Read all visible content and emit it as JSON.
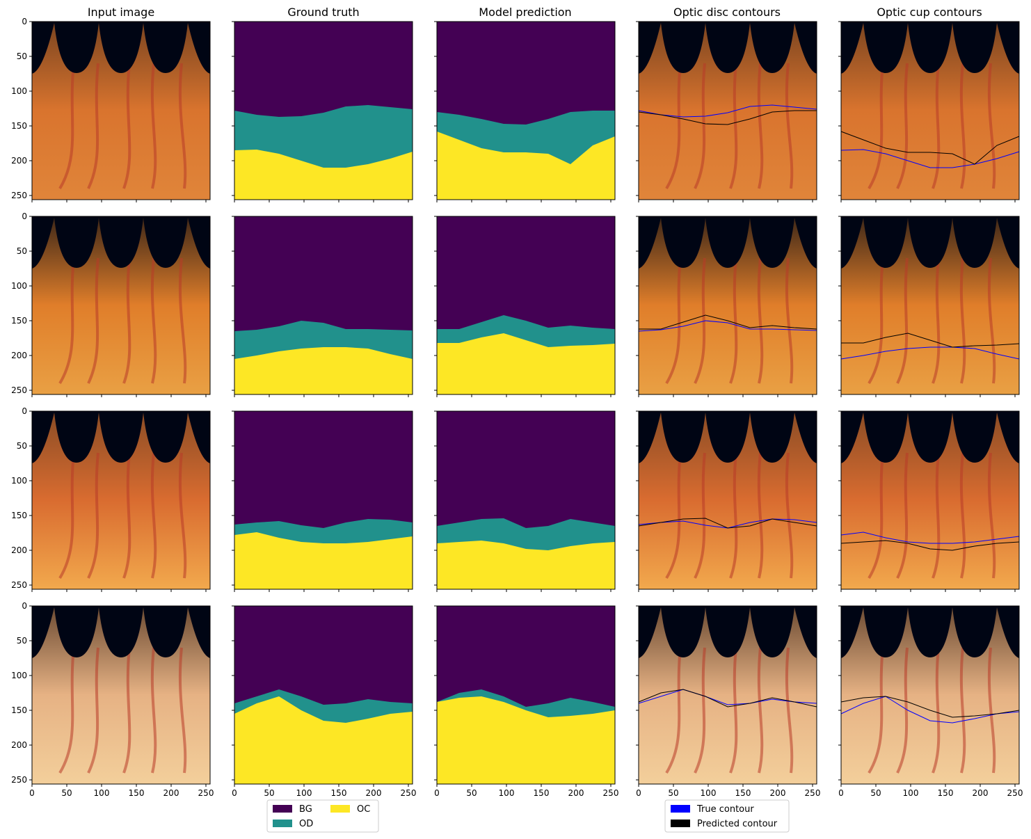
{
  "figure": {
    "column_titles": [
      "Input image",
      "Ground truth",
      "Model prediction",
      "Optic disc contours",
      "Optic cup contours"
    ],
    "y_ticks": [
      "0",
      "50",
      "100",
      "150",
      "200",
      "250"
    ],
    "x_ticks": [
      "0",
      "50",
      "100",
      "150",
      "200",
      "250"
    ],
    "legend_classes": {
      "items": [
        {
          "label": "BG",
          "color": "#440154"
        },
        {
          "label": "OD",
          "color": "#21918c"
        },
        {
          "label": "OC",
          "color": "#fde725"
        }
      ]
    },
    "legend_contours": {
      "items": [
        {
          "label": "True contour",
          "color": "#0000ff"
        },
        {
          "label": "Predicted contour",
          "color": "#000000"
        }
      ]
    }
  },
  "chart_data": {
    "type": "segmentation_grid",
    "image_size": [
      256,
      256
    ],
    "xlim": [
      0,
      256
    ],
    "ylim": [
      256,
      0
    ],
    "x_sample": [
      0,
      32,
      64,
      96,
      128,
      160,
      192,
      224,
      256
    ],
    "samples": [
      {
        "gt_disc": [
          128,
          134,
          137,
          136,
          131,
          122,
          120,
          123,
          126
        ],
        "gt_cup": [
          185,
          184,
          190,
          200,
          210,
          210,
          205,
          197,
          187
        ],
        "pred_disc": [
          130,
          134,
          140,
          147,
          148,
          140,
          130,
          128,
          128
        ],
        "pred_cup": [
          158,
          170,
          182,
          188,
          188,
          190,
          205,
          178,
          165
        ]
      },
      {
        "gt_disc": [
          165,
          163,
          158,
          150,
          153,
          162,
          162,
          163,
          164
        ],
        "gt_cup": [
          205,
          200,
          194,
          190,
          188,
          188,
          190,
          198,
          205
        ],
        "pred_disc": [
          162,
          162,
          152,
          142,
          150,
          160,
          157,
          160,
          162
        ],
        "pred_cup": [
          182,
          182,
          174,
          168,
          178,
          188,
          186,
          185,
          183
        ]
      },
      {
        "gt_disc": [
          163,
          160,
          158,
          164,
          168,
          160,
          155,
          156,
          160
        ],
        "gt_cup": [
          178,
          174,
          182,
          188,
          190,
          190,
          188,
          184,
          180
        ],
        "pred_disc": [
          165,
          160,
          155,
          154,
          168,
          165,
          155,
          160,
          165
        ],
        "pred_cup": [
          190,
          188,
          186,
          190,
          198,
          200,
          194,
          190,
          188
        ]
      },
      {
        "gt_disc": [
          140,
          130,
          120,
          130,
          142,
          140,
          134,
          138,
          140
        ],
        "gt_cup": [
          155,
          140,
          130,
          150,
          165,
          168,
          162,
          155,
          152
        ],
        "pred_disc": [
          138,
          125,
          120,
          130,
          145,
          140,
          132,
          138,
          145
        ],
        "pred_cup": [
          138,
          132,
          130,
          138,
          150,
          160,
          158,
          155,
          150
        ]
      }
    ],
    "fundus_palette": [
      {
        "top": "#7a4420",
        "mid": "#d9742e",
        "bottom": "#e0853a"
      },
      {
        "top": "#3d2718",
        "mid": "#e07e2a",
        "bottom": "#e9a044"
      },
      {
        "top": "#8a4c25",
        "mid": "#d96c30",
        "bottom": "#f2a94d"
      },
      {
        "top": "#6b4a32",
        "mid": "#e6b284",
        "bottom": "#f3cf9b"
      }
    ]
  }
}
